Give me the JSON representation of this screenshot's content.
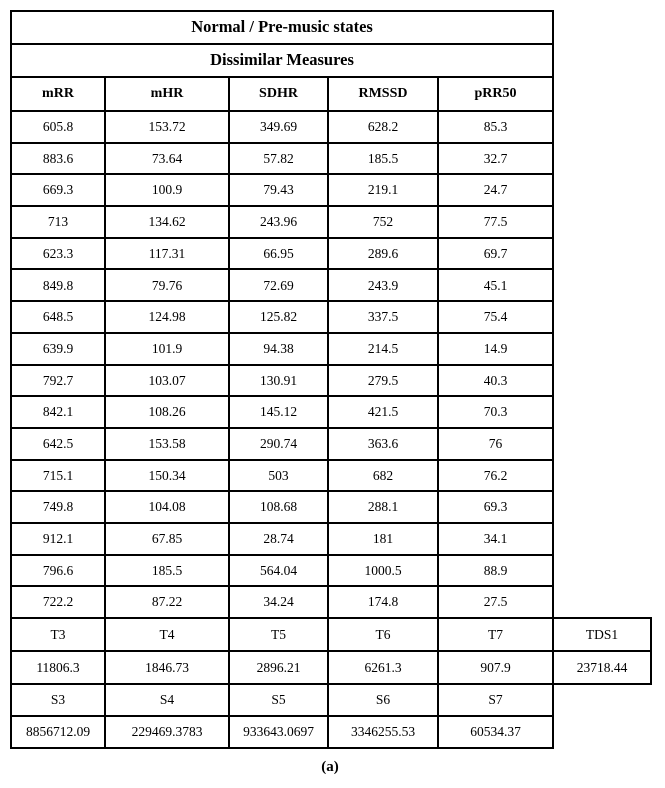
{
  "table": {
    "title": "Normal / Pre-music states",
    "subtitle": "Dissimilar Measures",
    "columns": [
      "mRR",
      "mHR",
      "SDHR",
      "RMSSD",
      "pRR50"
    ],
    "rows": [
      [
        "605.8",
        "153.72",
        "349.69",
        "628.2",
        "85.3"
      ],
      [
        "883.6",
        "73.64",
        "57.82",
        "185.5",
        "32.7"
      ],
      [
        "669.3",
        "100.9",
        "79.43",
        "219.1",
        "24.7"
      ],
      [
        "713",
        "134.62",
        "243.96",
        "752",
        "77.5"
      ],
      [
        "623.3",
        "117.31",
        "66.95",
        "289.6",
        "69.7"
      ],
      [
        "849.8",
        "79.76",
        "72.69",
        "243.9",
        "45.1"
      ],
      [
        "648.5",
        "124.98",
        "125.82",
        "337.5",
        "75.4"
      ],
      [
        "639.9",
        "101.9",
        "94.38",
        "214.5",
        "14.9"
      ],
      [
        "792.7",
        "103.07",
        "130.91",
        "279.5",
        "40.3"
      ],
      [
        "842.1",
        "108.26",
        "145.12",
        "421.5",
        "70.3"
      ],
      [
        "642.5",
        "153.58",
        "290.74",
        "363.6",
        "76"
      ],
      [
        "715.1",
        "150.34",
        "503",
        "682",
        "76.2"
      ],
      [
        "749.8",
        "104.08",
        "108.68",
        "288.1",
        "69.3"
      ],
      [
        "912.1",
        "67.85",
        "28.74",
        "181",
        "34.1"
      ],
      [
        "796.6",
        "185.5",
        "564.04",
        "1000.5",
        "88.9"
      ],
      [
        "722.2",
        "87.22",
        "34.24",
        "174.8",
        "27.5"
      ]
    ],
    "t_row": {
      "labels": [
        "T3",
        "T4",
        "T5",
        "T6",
        "T7"
      ],
      "extra_label": "TDS1"
    },
    "t_values": {
      "values": [
        "11806.3",
        "1846.73",
        "2896.21",
        "6261.3",
        "907.9"
      ],
      "extra_value": "23718.44"
    },
    "s_row": {
      "labels": [
        "S3",
        "S4",
        "S5",
        "S6",
        "S7"
      ]
    },
    "s_values": {
      "values": [
        "8856712.09",
        "229469.3783",
        "933643.0697",
        "3346255.53",
        "60534.37"
      ]
    }
  },
  "caption": "(a)",
  "colors": {
    "border": "#000000",
    "text": "#000000",
    "background": "#ffffff"
  }
}
